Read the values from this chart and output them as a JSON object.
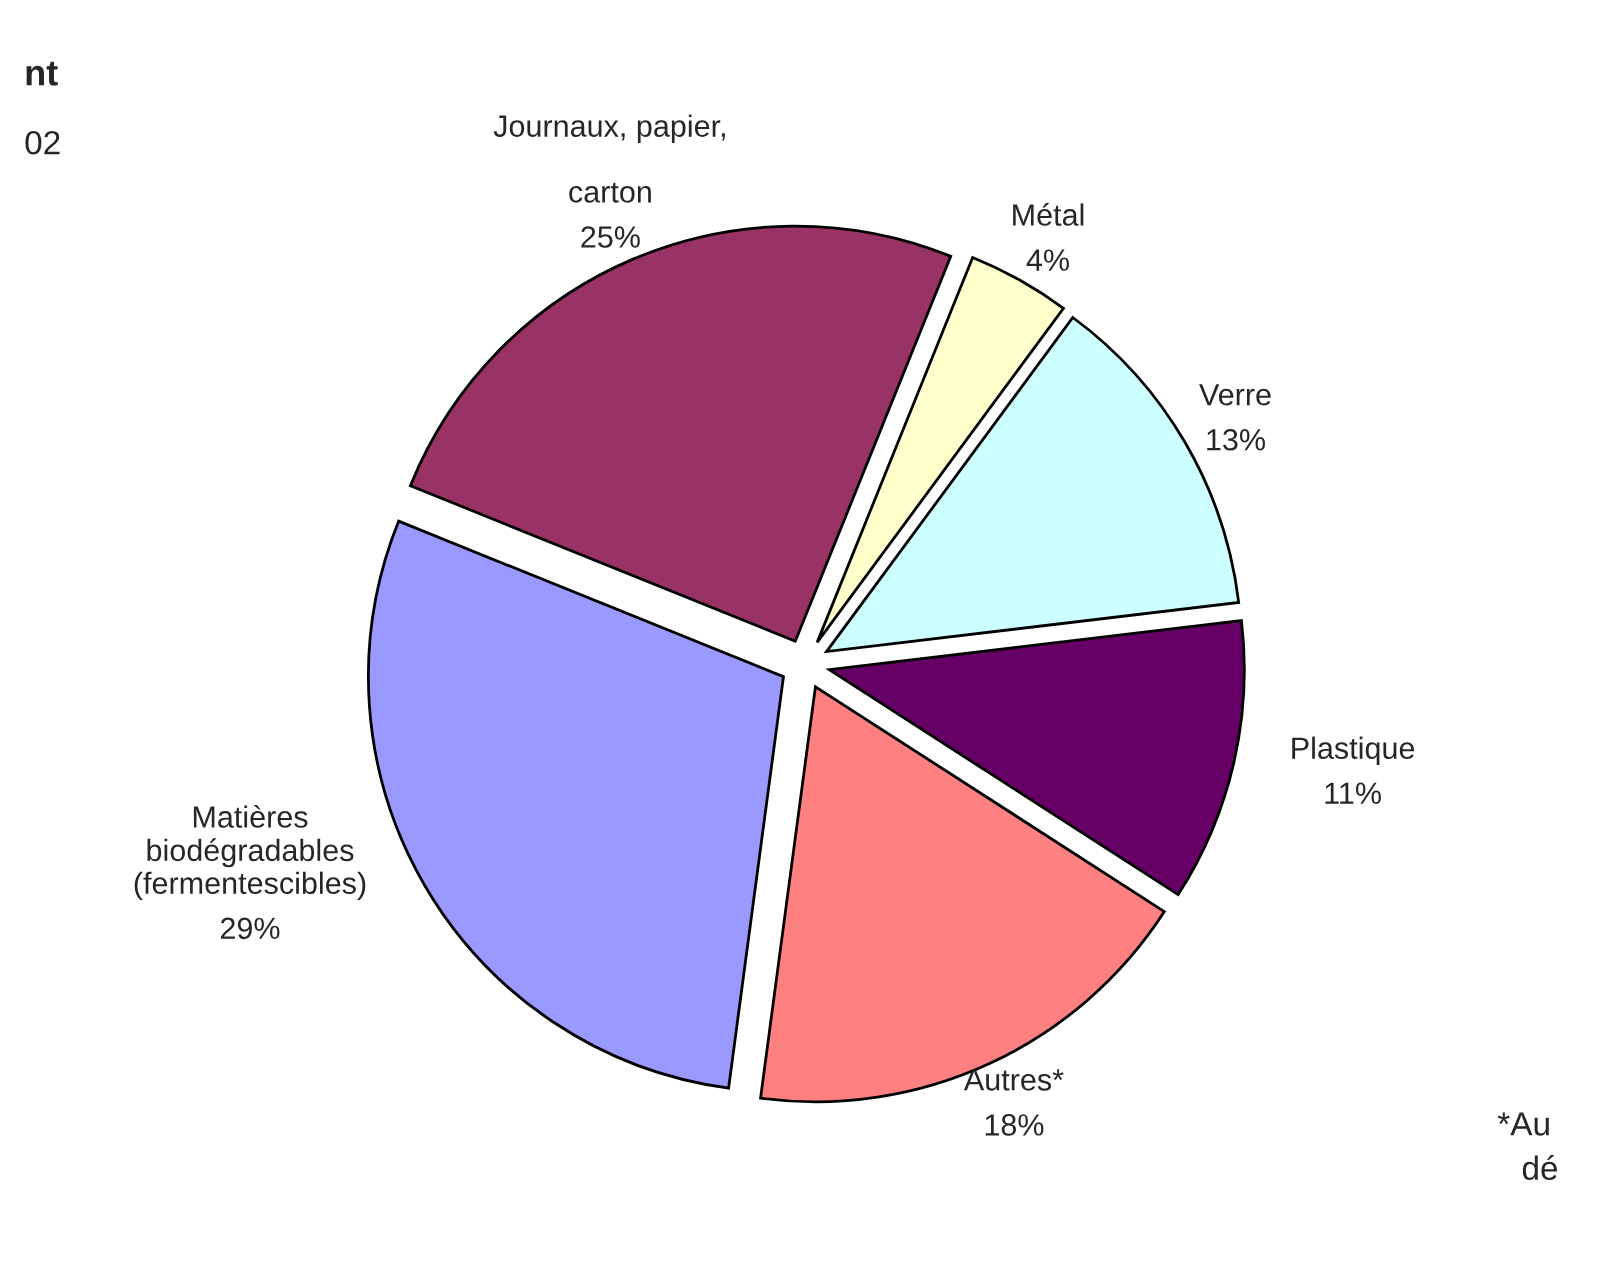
{
  "chart_data": {
    "type": "pie",
    "categories": [
      "Métal",
      "Verre",
      "Plastique",
      "Autres*",
      "Matières\nbiodégradables\n(fermentescibles)",
      "Journaux, papier,\n\ncarton"
    ],
    "values": [
      4,
      13,
      11,
      18,
      29,
      25
    ],
    "colors": [
      "#ffffcc",
      "#ccffff",
      "#660066",
      "#ff8080",
      "#9999ff",
      "#993366"
    ],
    "value_labels": [
      "4%",
      "13%",
      "11%",
      "18%",
      "29%",
      "25%"
    ],
    "annotations": [
      "nt",
      "02",
      "*Au",
      "dé"
    ]
  }
}
